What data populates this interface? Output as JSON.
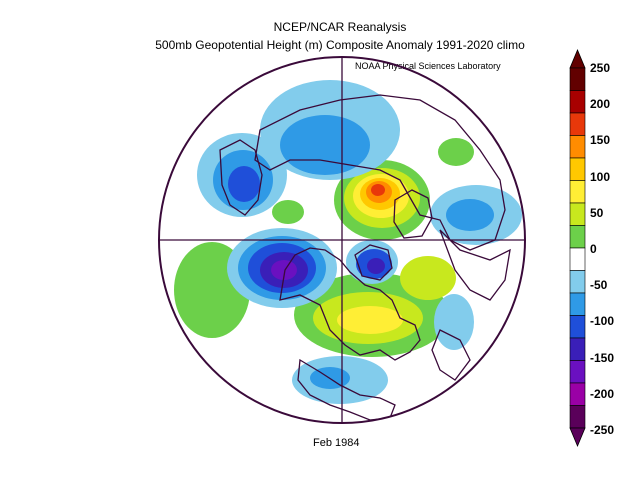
{
  "title": "NCEP/NCAR Reanalysis",
  "subtitle": "500mb Geopotential Height (m) Composite Anomaly 1991-2020 climo",
  "credit": "NOAA Physical Sciences Laboratory",
  "footer": "Feb 1984",
  "colorbar": {
    "labels": [
      "250",
      "200",
      "150",
      "100",
      "50",
      "0",
      "-50",
      "-100",
      "-150",
      "-200",
      "-250"
    ],
    "colors": [
      "#620000",
      "#a80000",
      "#e8380a",
      "#ff8c00",
      "#ffc800",
      "#ffee35",
      "#c8e81e",
      "#6cd04a",
      "#ffffff",
      "#82ccec",
      "#2f9ae6",
      "#1f4fd9",
      "#3a1fb8",
      "#6a10c0",
      "#9a00a6",
      "#5a005a"
    ]
  },
  "map": {
    "projection": "north polar stereographic",
    "variable": "500mb geopotential height anomaly"
  }
}
